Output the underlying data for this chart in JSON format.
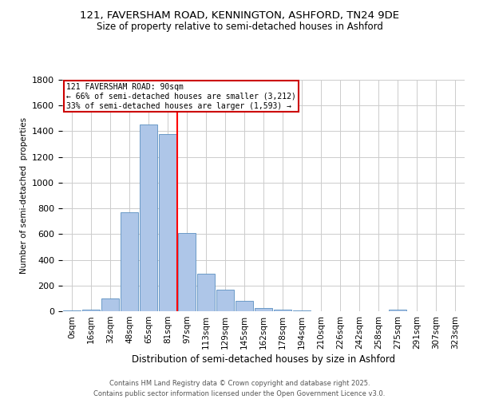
{
  "title_line1": "121, FAVERSHAM ROAD, KENNINGTON, ASHFORD, TN24 9DE",
  "title_line2": "Size of property relative to semi-detached houses in Ashford",
  "xlabel": "Distribution of semi-detached houses by size in Ashford",
  "ylabel": "Number of semi-detached  properties",
  "categories": [
    "0sqm",
    "16sqm",
    "32sqm",
    "48sqm",
    "65sqm",
    "81sqm",
    "97sqm",
    "113sqm",
    "129sqm",
    "145sqm",
    "162sqm",
    "178sqm",
    "194sqm",
    "210sqm",
    "226sqm",
    "242sqm",
    "258sqm",
    "275sqm",
    "291sqm",
    "307sqm",
    "323sqm"
  ],
  "bar_heights": [
    5,
    10,
    100,
    770,
    1450,
    1380,
    610,
    290,
    170,
    80,
    25,
    15,
    5,
    0,
    0,
    0,
    0,
    10,
    0,
    0,
    0
  ],
  "bar_color": "#aec6e8",
  "bar_edge_color": "#5a8fc0",
  "red_line_x": 5.5,
  "annotation_text_line1": "121 FAVERSHAM ROAD: 90sqm",
  "annotation_text_line2": "← 66% of semi-detached houses are smaller (3,212)",
  "annotation_text_line3": "33% of semi-detached houses are larger (1,593) →",
  "annotation_box_color": "#ffffff",
  "annotation_box_edge": "#cc0000",
  "ylim": [
    0,
    1800
  ],
  "yticks": [
    0,
    200,
    400,
    600,
    800,
    1000,
    1200,
    1400,
    1600,
    1800
  ],
  "footer_line1": "Contains HM Land Registry data © Crown copyright and database right 2025.",
  "footer_line2": "Contains public sector information licensed under the Open Government Licence v3.0.",
  "bg_color": "#ffffff",
  "grid_color": "#cccccc"
}
